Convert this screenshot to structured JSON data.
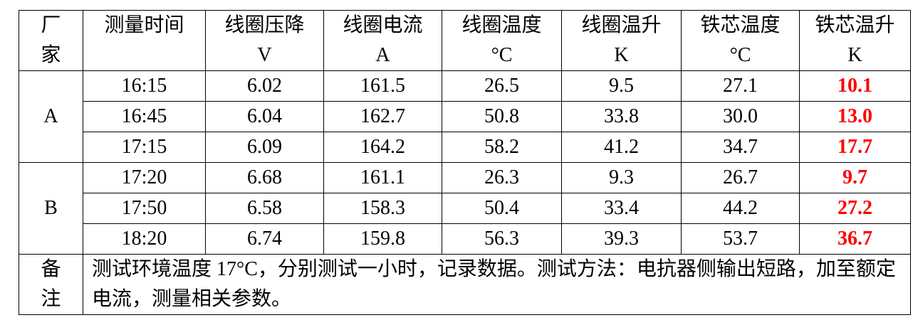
{
  "headers": [
    {
      "line1": "厂",
      "line2": "家"
    },
    {
      "line1": "测量时间",
      "line2": ""
    },
    {
      "line1": "线圈压降",
      "line2": "V"
    },
    {
      "line1": "线圈电流",
      "line2": "A"
    },
    {
      "line1": "线圈温度",
      "line2": "°C"
    },
    {
      "line1": "线圈温升",
      "line2": "K"
    },
    {
      "line1": "铁芯温度",
      "line2": "°C"
    },
    {
      "line1": "铁芯温升",
      "line2": "K"
    }
  ],
  "groups": [
    {
      "vendor": "A",
      "rows": [
        {
          "time": "16:15",
          "voltage": "6.02",
          "current": "161.5",
          "coil_temp": "26.5",
          "coil_rise": "9.5",
          "core_temp": "27.1",
          "core_rise": "10.1"
        },
        {
          "time": "16:45",
          "voltage": "6.04",
          "current": "162.7",
          "coil_temp": "50.8",
          "coil_rise": "33.8",
          "core_temp": "30.0",
          "core_rise": "13.0"
        },
        {
          "time": "17:15",
          "voltage": "6.09",
          "current": "164.2",
          "coil_temp": "58.2",
          "coil_rise": "41.2",
          "core_temp": "34.7",
          "core_rise": "17.7"
        }
      ]
    },
    {
      "vendor": "B",
      "rows": [
        {
          "time": "17:20",
          "voltage": "6.68",
          "current": "161.1",
          "coil_temp": "26.3",
          "coil_rise": "9.3",
          "core_temp": "26.7",
          "core_rise": "9.7"
        },
        {
          "time": "17:50",
          "voltage": "6.58",
          "current": "158.3",
          "coil_temp": "50.4",
          "coil_rise": "33.4",
          "core_temp": "44.2",
          "core_rise": "27.2"
        },
        {
          "time": "18:20",
          "voltage": "6.74",
          "current": "159.8",
          "coil_temp": "56.3",
          "coil_rise": "39.3",
          "core_temp": "53.7",
          "core_rise": "36.7"
        }
      ]
    }
  ],
  "remarks": {
    "label_line1": "备",
    "label_line2": "注",
    "text": "测试环境温度 17°C，分别测试一小时，记录数据。测试方法：电抗器侧输出短路，加至额定电流，测量相关参数。"
  },
  "colors": {
    "highlight": "#ff0000",
    "border": "#000000",
    "text": "#000000"
  }
}
